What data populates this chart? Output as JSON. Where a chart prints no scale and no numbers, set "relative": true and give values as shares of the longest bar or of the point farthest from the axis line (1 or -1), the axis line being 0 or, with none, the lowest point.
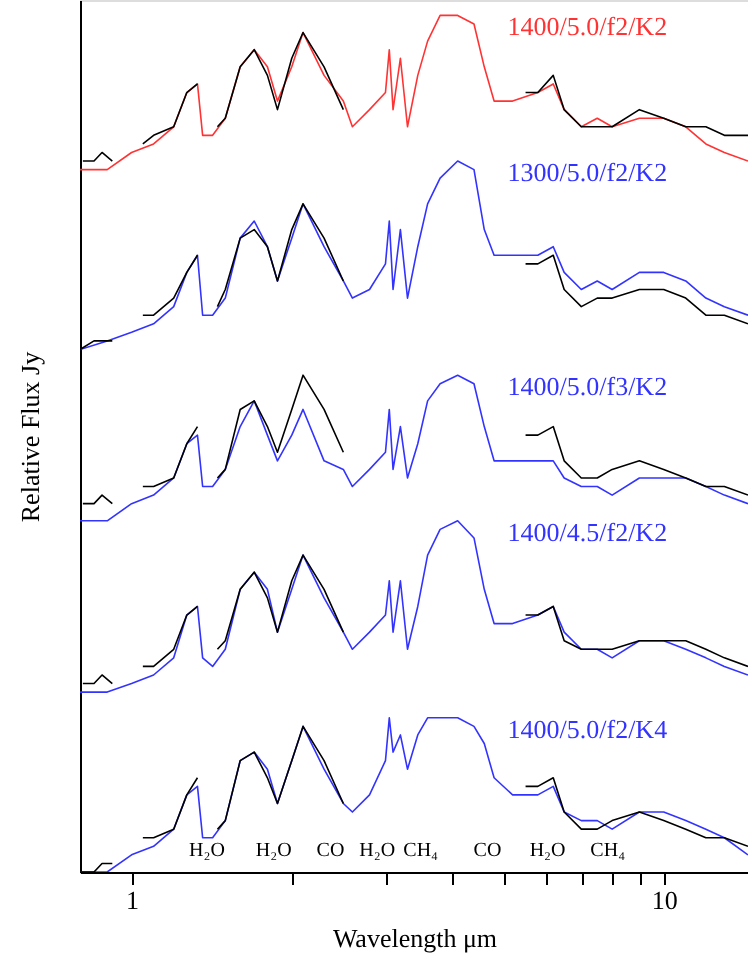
{
  "chart_data": {
    "type": "line",
    "relative": true,
    "xlabel": "Wavelength μm",
    "ylabel": "Relative Flux Jy",
    "log": "x",
    "grid": false,
    "marker": "none",
    "line_style": "solid",
    "xlim": [
      0.8,
      14.4
    ],
    "xticks": [
      1,
      {
        "value": 2,
        "label": null
      },
      {
        "value": 3,
        "label": null
      },
      {
        "value": 4,
        "label": null
      },
      {
        "value": 5,
        "label": null
      },
      {
        "value": 6,
        "label": null
      },
      {
        "value": 7,
        "label": null
      },
      {
        "value": 8,
        "label": null
      },
      {
        "value": 9,
        "label": null
      },
      10
    ],
    "x": [
      0.8,
      0.9,
      1.0,
      1.1,
      1.2,
      1.27,
      1.33,
      1.36,
      1.42,
      1.5,
      1.6,
      1.7,
      1.8,
      1.88,
      2.0,
      2.1,
      2.3,
      2.5,
      2.6,
      2.8,
      3.0,
      3.05,
      3.1,
      3.2,
      3.3,
      3.45,
      3.6,
      3.8,
      4.1,
      4.4,
      4.6,
      4.8,
      5.2,
      5.8,
      6.2,
      6.5,
      7.0,
      7.5,
      8.0,
      9.0,
      10,
      11,
      12,
      13,
      14.4
    ],
    "series": [
      {
        "color": "#000000",
        "x": [
          0.81,
          0.85,
          0.88,
          0.92,
          1.0,
          1.05,
          1.1,
          1.2,
          1.27,
          1.33,
          1.4,
          1.45,
          1.5,
          1.6,
          1.7,
          1.8,
          1.88,
          2.0,
          2.1,
          2.3,
          2.5,
          3.5,
          5.5,
          5.8,
          6.2,
          6.5,
          7.0,
          7.5,
          8.0,
          9.0,
          10,
          11,
          12,
          13,
          14.4
        ],
        "values": [
          0.83,
          0.83,
          0.84,
          0.83,
          null,
          0.85,
          0.86,
          0.87,
          0.91,
          0.92,
          null,
          0.87,
          0.88,
          0.94,
          0.96,
          0.93,
          0.89,
          0.95,
          0.98,
          0.94,
          0.89,
          null,
          0.91,
          0.91,
          0.93,
          0.89,
          0.87,
          0.87,
          0.87,
          0.89,
          0.88,
          0.87,
          0.87,
          0.86,
          0.86
        ]
      },
      {
        "name": "1400/5.0/f2/K2",
        "color": "#ff3333",
        "values": [
          0.82,
          0.82,
          0.84,
          0.85,
          0.87,
          0.91,
          0.92,
          0.86,
          0.86,
          0.88,
          0.94,
          0.96,
          0.94,
          0.9,
          0.94,
          0.98,
          0.93,
          0.9,
          0.87,
          0.89,
          0.91,
          0.96,
          0.89,
          0.95,
          0.87,
          0.93,
          0.97,
          1.0,
          1.0,
          0.99,
          0.94,
          0.9,
          0.9,
          0.91,
          0.92,
          0.89,
          0.87,
          0.88,
          0.87,
          0.88,
          0.88,
          0.87,
          0.85,
          0.84,
          0.83
        ]
      },
      {
        "color": "#000000",
        "x": [
          0.8,
          0.85,
          0.88,
          0.92,
          1.0,
          1.05,
          1.1,
          1.2,
          1.27,
          1.33,
          1.4,
          1.45,
          1.5,
          1.6,
          1.7,
          1.8,
          1.88,
          2.0,
          2.1,
          2.3,
          2.5,
          3.5,
          5.5,
          5.8,
          6.2,
          6.5,
          7.0,
          7.5,
          8.0,
          9.0,
          10,
          11,
          12,
          13,
          14.4
        ],
        "values": [
          0.61,
          0.62,
          0.62,
          0.62,
          null,
          0.65,
          0.65,
          0.67,
          0.7,
          0.72,
          null,
          0.66,
          0.68,
          0.74,
          0.75,
          0.73,
          0.69,
          0.75,
          0.78,
          0.74,
          0.69,
          null,
          0.71,
          0.71,
          0.72,
          0.68,
          0.66,
          0.67,
          0.67,
          0.68,
          0.68,
          0.67,
          0.65,
          0.65,
          0.64
        ]
      },
      {
        "name": "1300/5.0/f2/K2",
        "color": "#3333ff",
        "values": [
          0.61,
          0.62,
          0.63,
          0.64,
          0.66,
          0.7,
          0.72,
          0.65,
          0.65,
          0.67,
          0.74,
          0.76,
          0.73,
          0.69,
          0.74,
          0.78,
          0.73,
          0.69,
          0.67,
          0.68,
          0.71,
          0.76,
          0.68,
          0.75,
          0.67,
          0.73,
          0.78,
          0.81,
          0.83,
          0.82,
          0.75,
          0.72,
          0.72,
          0.72,
          0.73,
          0.7,
          0.68,
          0.69,
          0.68,
          0.7,
          0.7,
          0.69,
          0.67,
          0.66,
          0.65
        ]
      },
      {
        "color": "#000000",
        "x": [
          0.81,
          0.85,
          0.88,
          0.92,
          1.0,
          1.05,
          1.1,
          1.2,
          1.27,
          1.33,
          1.4,
          1.45,
          1.5,
          1.6,
          1.7,
          1.8,
          1.88,
          2.0,
          2.1,
          2.3,
          2.5,
          3.5,
          5.5,
          5.8,
          6.2,
          6.5,
          7.0,
          7.5,
          8.0,
          9.0,
          10,
          11,
          12,
          13,
          14.4
        ],
        "values": [
          0.43,
          0.43,
          0.44,
          0.43,
          null,
          0.45,
          0.45,
          0.46,
          0.5,
          0.52,
          null,
          0.46,
          0.47,
          0.54,
          0.55,
          0.52,
          0.49,
          0.54,
          0.58,
          0.54,
          0.49,
          null,
          0.51,
          0.51,
          0.52,
          0.48,
          0.46,
          0.46,
          0.47,
          0.48,
          0.47,
          0.46,
          0.45,
          0.45,
          0.44
        ]
      },
      {
        "name": "1400/5.0/f3/K2",
        "color": "#3333ff",
        "values": [
          0.41,
          0.41,
          0.43,
          0.44,
          0.46,
          0.5,
          0.51,
          0.45,
          0.45,
          0.47,
          0.52,
          0.55,
          0.51,
          0.48,
          0.51,
          0.54,
          0.48,
          0.47,
          0.45,
          0.47,
          0.49,
          0.54,
          0.47,
          0.52,
          0.46,
          0.5,
          0.55,
          0.57,
          0.58,
          0.57,
          0.52,
          0.48,
          0.48,
          0.48,
          0.48,
          0.46,
          0.45,
          0.45,
          0.44,
          0.46,
          0.46,
          0.46,
          0.45,
          0.44,
          0.43
        ]
      },
      {
        "color": "#000000",
        "x": [
          0.81,
          0.85,
          0.88,
          0.92,
          1.0,
          1.05,
          1.1,
          1.2,
          1.27,
          1.33,
          1.4,
          1.45,
          1.5,
          1.6,
          1.7,
          1.8,
          1.88,
          2.0,
          2.1,
          2.3,
          2.5,
          3.5,
          5.5,
          5.8,
          6.2,
          6.5,
          7.0,
          7.5,
          8.0,
          9.0,
          10,
          11,
          12,
          13,
          14.4
        ],
        "values": [
          0.22,
          0.22,
          0.23,
          0.22,
          null,
          0.24,
          0.24,
          0.26,
          0.3,
          0.31,
          null,
          0.26,
          0.27,
          0.33,
          0.35,
          0.32,
          0.28,
          0.34,
          0.37,
          0.33,
          0.28,
          null,
          0.3,
          0.3,
          0.31,
          0.27,
          0.26,
          0.26,
          0.26,
          0.27,
          0.27,
          0.27,
          0.26,
          0.25,
          0.24
        ]
      },
      {
        "name": "1400/4.5/f2/K2",
        "color": "#3333ff",
        "values": [
          0.21,
          0.21,
          0.22,
          0.23,
          0.25,
          0.3,
          0.31,
          0.25,
          0.24,
          0.26,
          0.33,
          0.35,
          0.33,
          0.28,
          0.33,
          0.37,
          0.32,
          0.28,
          0.26,
          0.28,
          0.3,
          0.34,
          0.28,
          0.34,
          0.26,
          0.31,
          0.37,
          0.4,
          0.41,
          0.39,
          0.33,
          0.29,
          0.29,
          0.3,
          0.31,
          0.28,
          0.26,
          0.26,
          0.25,
          0.27,
          0.27,
          0.26,
          0.25,
          0.24,
          0.23
        ]
      },
      {
        "color": "#000000",
        "x": [
          0.8,
          0.85,
          0.88,
          0.92,
          1.0,
          1.05,
          1.1,
          1.2,
          1.27,
          1.33,
          1.4,
          1.45,
          1.5,
          1.6,
          1.7,
          1.8,
          1.88,
          2.0,
          2.1,
          2.3,
          2.5,
          3.5,
          5.5,
          5.8,
          6.2,
          6.5,
          7.0,
          7.5,
          8.0,
          9.0,
          10,
          11,
          12,
          13,
          14.4
        ],
        "values": [
          0.0,
          0.0,
          0.01,
          0.01,
          null,
          0.04,
          0.04,
          0.05,
          0.09,
          0.11,
          null,
          0.05,
          0.06,
          0.13,
          0.14,
          0.11,
          0.08,
          0.13,
          0.17,
          0.13,
          0.08,
          null,
          0.1,
          0.1,
          0.11,
          0.07,
          0.05,
          0.05,
          0.06,
          0.07,
          0.06,
          0.05,
          0.04,
          0.04,
          0.03
        ]
      },
      {
        "name": "1400/5.0/f2/K4",
        "color": "#3333ff",
        "values": [
          0.0,
          0.0,
          0.02,
          0.03,
          0.05,
          0.09,
          0.1,
          0.04,
          0.04,
          0.06,
          0.13,
          0.14,
          0.12,
          0.08,
          0.13,
          0.17,
          0.12,
          0.08,
          0.07,
          0.09,
          0.13,
          0.18,
          0.14,
          0.16,
          0.12,
          0.16,
          0.18,
          0.18,
          0.18,
          0.17,
          0.15,
          0.11,
          0.09,
          0.09,
          0.1,
          0.07,
          0.06,
          0.06,
          0.05,
          0.07,
          0.07,
          0.06,
          0.05,
          0.04,
          0.02
        ]
      }
    ],
    "annotations": [
      "H₂O",
      "H₂O",
      "CO",
      "H₂O",
      "CH₄",
      "CO",
      "H₂O",
      "CH₄"
    ]
  }
}
